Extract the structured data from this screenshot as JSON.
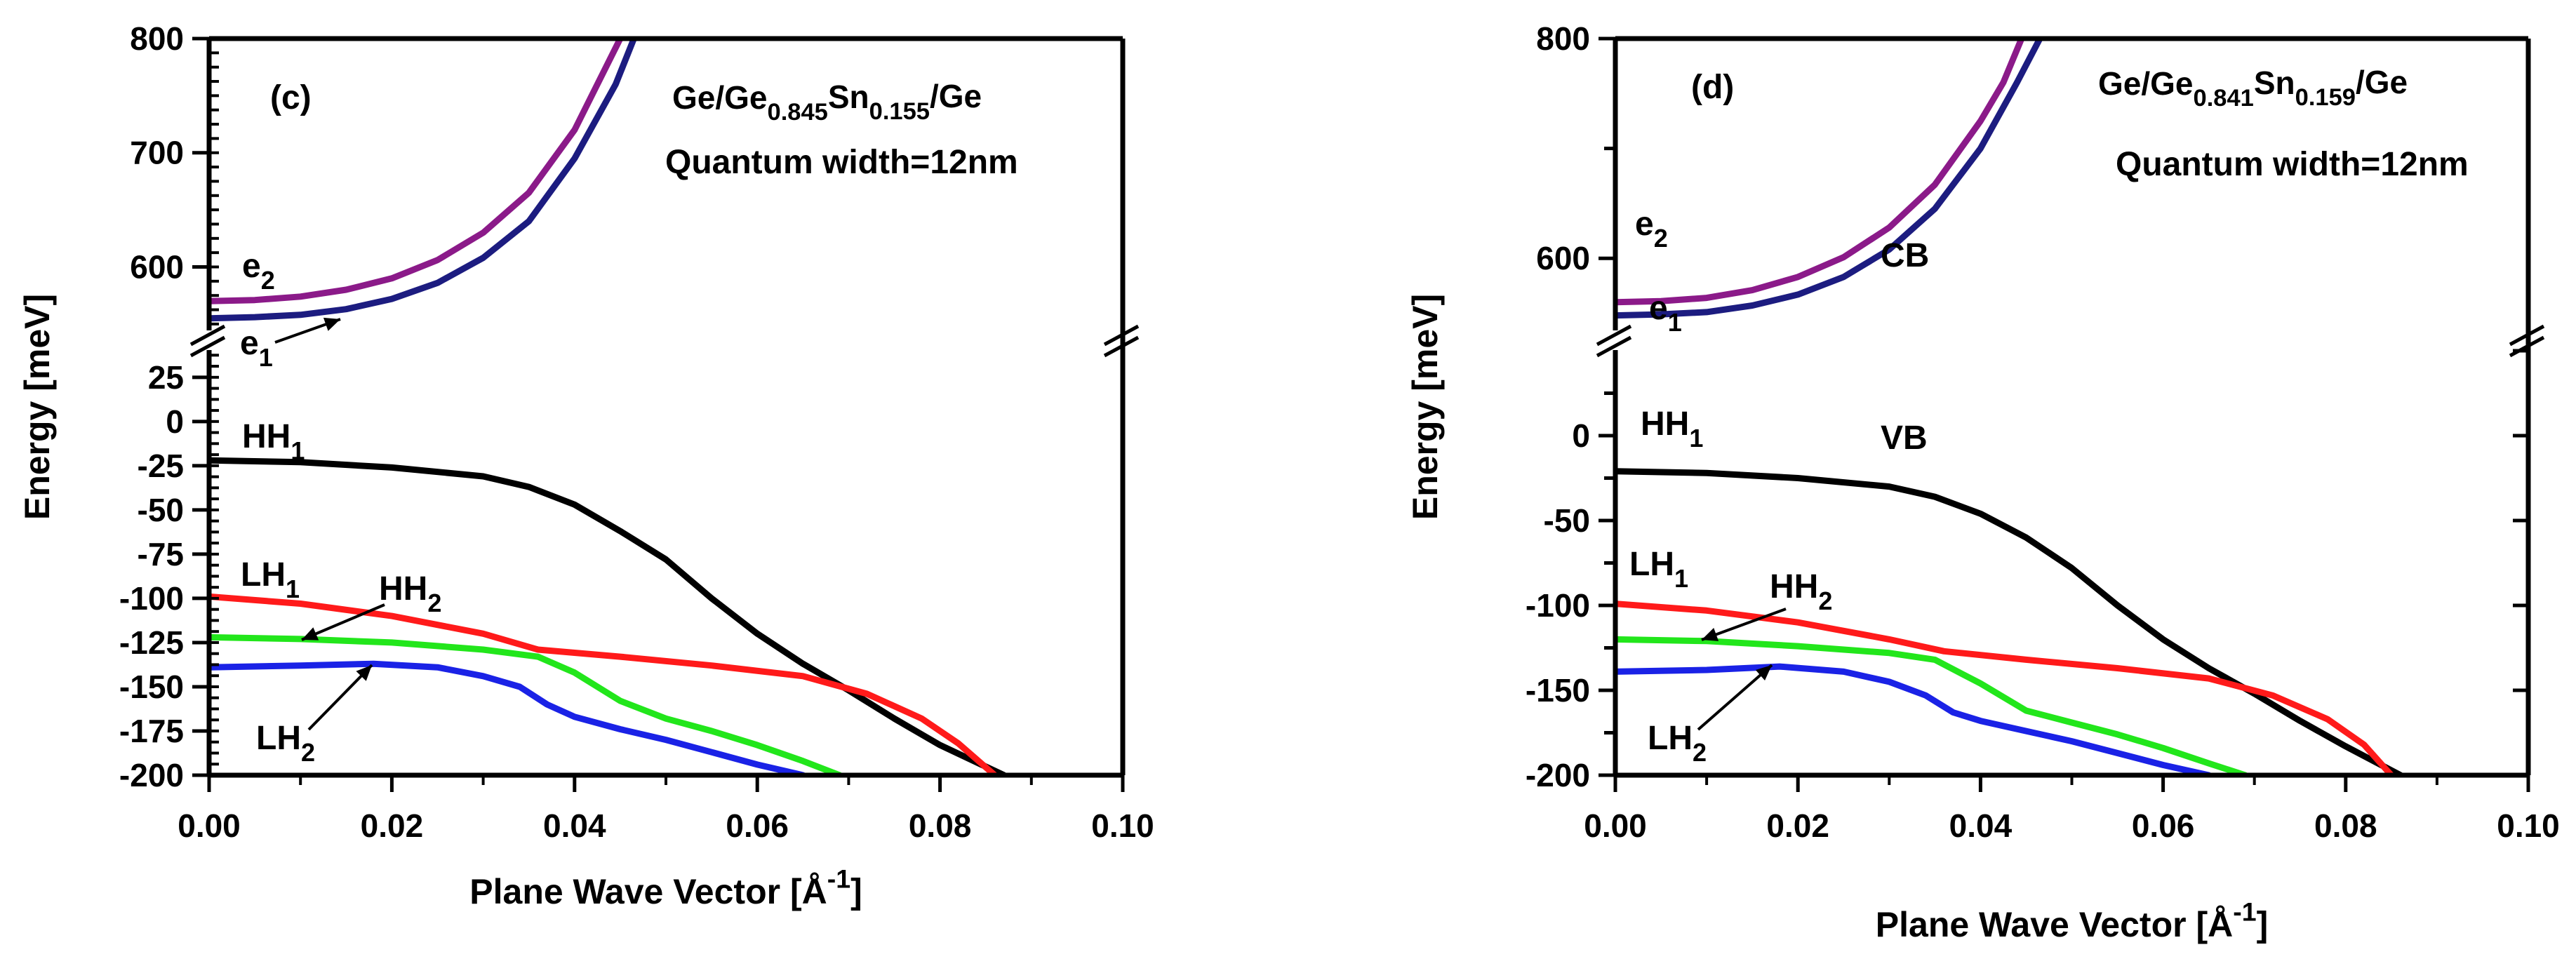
{
  "chart_data": [
    {
      "type": "line",
      "panel_label": "(c)",
      "structure": {
        "base": "Ge/Ge",
        "x": "0.845",
        "mid": "Sn",
        "y": "0.155",
        "tail": "/Ge"
      },
      "quantum_width": "Quantum width=12nm",
      "xlabel": {
        "main": "Plane Wave Vector [Å",
        "sup": "-1",
        "close": "]"
      },
      "ylabel": "Energy [meV]",
      "xlim": [
        0,
        0.1
      ],
      "x_ticks": [
        "0.00",
        "0.02",
        "0.04",
        "0.06",
        "0.08",
        "0.10"
      ],
      "upper": {
        "ylim": [
          545,
          800
        ],
        "ticks": [
          {
            "v": 600,
            "label": "600"
          },
          {
            "v": 700,
            "label": "700"
          },
          {
            "v": 800,
            "label": "800"
          }
        ]
      },
      "lower": {
        "ylim": [
          -200,
          40
        ],
        "ticks": [
          {
            "v": 25,
            "label": "25"
          },
          {
            "v": 0,
            "label": "0"
          },
          {
            "v": -25,
            "label": "-25"
          },
          {
            "v": -50,
            "label": "-50"
          },
          {
            "v": -75,
            "label": "-75"
          },
          {
            "v": -100,
            "label": "-100"
          },
          {
            "v": -125,
            "label": "-125"
          },
          {
            "v": -150,
            "label": "-150"
          },
          {
            "v": -175,
            "label": "-175"
          },
          {
            "v": -200,
            "label": "-200"
          }
        ]
      },
      "series": [
        {
          "name": "e2",
          "label": "e",
          "sub": "2",
          "color": "#8b1a89",
          "axis": "upper",
          "points": [
            [
              0,
              570
            ],
            [
              0.005,
              571
            ],
            [
              0.01,
              574
            ],
            [
              0.015,
              580
            ],
            [
              0.02,
              590
            ],
            [
              0.025,
              606
            ],
            [
              0.03,
              630
            ],
            [
              0.035,
              665
            ],
            [
              0.04,
              720
            ],
            [
              0.045,
              800
            ]
          ]
        },
        {
          "name": "e1",
          "label": "e",
          "sub": "1",
          "color": "#1c1c80",
          "axis": "upper",
          "points": [
            [
              0,
              555
            ],
            [
              0.005,
              556
            ],
            [
              0.01,
              558
            ],
            [
              0.015,
              563
            ],
            [
              0.02,
              572
            ],
            [
              0.025,
              586
            ],
            [
              0.03,
              608
            ],
            [
              0.035,
              640
            ],
            [
              0.04,
              695
            ],
            [
              0.0445,
              760
            ],
            [
              0.0465,
              800
            ]
          ]
        },
        {
          "name": "HH1",
          "label": "HH",
          "sub": "1",
          "color": "#000000",
          "axis": "lower",
          "points": [
            [
              0,
              -22
            ],
            [
              0.01,
              -23
            ],
            [
              0.02,
              -26
            ],
            [
              0.03,
              -31
            ],
            [
              0.035,
              -37
            ],
            [
              0.04,
              -47
            ],
            [
              0.045,
              -62
            ],
            [
              0.05,
              -78
            ],
            [
              0.055,
              -100
            ],
            [
              0.06,
              -120
            ],
            [
              0.065,
              -137
            ],
            [
              0.07,
              -152
            ],
            [
              0.075,
              -168
            ],
            [
              0.08,
              -183
            ],
            [
              0.087,
              -200
            ]
          ]
        },
        {
          "name": "LH1",
          "label": "LH",
          "sub": "1",
          "color": "#ff1a1a",
          "axis": "lower",
          "points": [
            [
              0,
              -99
            ],
            [
              0.01,
              -103
            ],
            [
              0.02,
              -110
            ],
            [
              0.03,
              -120
            ],
            [
              0.036,
              -129
            ],
            [
              0.045,
              -133
            ],
            [
              0.055,
              -138
            ],
            [
              0.065,
              -144
            ],
            [
              0.072,
              -154
            ],
            [
              0.078,
              -168
            ],
            [
              0.082,
              -182
            ],
            [
              0.086,
              -200
            ]
          ]
        },
        {
          "name": "HH2",
          "label": "HH",
          "sub": "2",
          "color": "#22e61b",
          "axis": "lower",
          "points": [
            [
              0,
              -122
            ],
            [
              0.01,
              -123
            ],
            [
              0.02,
              -125
            ],
            [
              0.03,
              -129
            ],
            [
              0.036,
              -133
            ],
            [
              0.04,
              -142
            ],
            [
              0.045,
              -158
            ],
            [
              0.05,
              -168
            ],
            [
              0.055,
              -175
            ],
            [
              0.06,
              -183
            ],
            [
              0.065,
              -192
            ],
            [
              0.069,
              -200
            ]
          ]
        },
        {
          "name": "LH2",
          "label": "LH",
          "sub": "2",
          "color": "#1a22e6",
          "axis": "lower",
          "points": [
            [
              0,
              -139
            ],
            [
              0.01,
              -138
            ],
            [
              0.018,
              -137
            ],
            [
              0.025,
              -139
            ],
            [
              0.03,
              -144
            ],
            [
              0.034,
              -150
            ],
            [
              0.037,
              -160
            ],
            [
              0.04,
              -167
            ],
            [
              0.045,
              -174
            ],
            [
              0.05,
              -180
            ],
            [
              0.055,
              -187
            ],
            [
              0.06,
              -194
            ],
            [
              0.065,
              -200
            ]
          ]
        }
      ],
      "annotations": {
        "e2": {
          "text": "e",
          "sub": "2"
        },
        "e1": {
          "text": "e",
          "sub": "1"
        },
        "HH1": {
          "text": "HH",
          "sub": "1"
        },
        "LH1": {
          "text": "LH",
          "sub": "1"
        },
        "HH2": {
          "text": "HH",
          "sub": "2"
        },
        "LH2": {
          "text": "LH",
          "sub": "2"
        }
      }
    },
    {
      "type": "line",
      "panel_label": "(d)",
      "structure": {
        "base": "Ge/Ge",
        "x": "0.841",
        "mid": "Sn",
        "y": "0.159",
        "tail": "/Ge"
      },
      "quantum_width": "Quantum width=12nm",
      "xlabel": {
        "main": "Plane Wave Vector [Å",
        "sup": "-1",
        "close": "]"
      },
      "ylabel": "Energy [meV]",
      "xlim": [
        0,
        0.1
      ],
      "x_ticks": [
        "0.00",
        "0.02",
        "0.04",
        "0.06",
        "0.08",
        "0.10"
      ],
      "upper": {
        "ylim": [
          535,
          800
        ],
        "ticks": [
          {
            "v": 600,
            "label": "600"
          },
          {
            "v": 800,
            "label": "800"
          }
        ]
      },
      "lower": {
        "ylim": [
          -200,
          50
        ],
        "ticks": [
          {
            "v": 0,
            "label": "0"
          },
          {
            "v": -50,
            "label": "-50"
          },
          {
            "v": -100,
            "label": "-100"
          },
          {
            "v": -150,
            "label": "-150"
          },
          {
            "v": -200,
            "label": "-200"
          }
        ]
      },
      "series": [
        {
          "name": "e2",
          "label": "e",
          "sub": "2",
          "color": "#8b1a89",
          "axis": "upper",
          "points": [
            [
              0,
              560
            ],
            [
              0.005,
              561
            ],
            [
              0.01,
              564
            ],
            [
              0.015,
              571
            ],
            [
              0.02,
              583
            ],
            [
              0.025,
              601
            ],
            [
              0.03,
              628
            ],
            [
              0.035,
              667
            ],
            [
              0.04,
              725
            ],
            [
              0.0425,
              760
            ],
            [
              0.0445,
              800
            ]
          ]
        },
        {
          "name": "e1",
          "label": "e",
          "sub": "1",
          "color": "#1c1c80",
          "axis": "upper",
          "points": [
            [
              0,
              548
            ],
            [
              0.005,
              549
            ],
            [
              0.01,
              551
            ],
            [
              0.015,
              557
            ],
            [
              0.02,
              567
            ],
            [
              0.025,
              583
            ],
            [
              0.03,
              608
            ],
            [
              0.035,
              645
            ],
            [
              0.04,
              700
            ],
            [
              0.044,
              760
            ],
            [
              0.0465,
              800
            ]
          ]
        },
        {
          "name": "HH1",
          "label": "HH",
          "sub": "1",
          "color": "#000000",
          "axis": "lower",
          "points": [
            [
              0,
              -21
            ],
            [
              0.01,
              -22
            ],
            [
              0.02,
              -25
            ],
            [
              0.03,
              -30
            ],
            [
              0.035,
              -36
            ],
            [
              0.04,
              -46
            ],
            [
              0.045,
              -60
            ],
            [
              0.05,
              -78
            ],
            [
              0.055,
              -100
            ],
            [
              0.06,
              -120
            ],
            [
              0.065,
              -137
            ],
            [
              0.07,
              -152
            ],
            [
              0.075,
              -168
            ],
            [
              0.08,
              -183
            ],
            [
              0.086,
              -200
            ]
          ]
        },
        {
          "name": "LH1",
          "label": "LH",
          "sub": "1",
          "color": "#ff1a1a",
          "axis": "lower",
          "points": [
            [
              0,
              -99
            ],
            [
              0.01,
              -103
            ],
            [
              0.02,
              -110
            ],
            [
              0.03,
              -120
            ],
            [
              0.036,
              -127
            ],
            [
              0.045,
              -132
            ],
            [
              0.055,
              -137
            ],
            [
              0.065,
              -143
            ],
            [
              0.072,
              -153
            ],
            [
              0.078,
              -167
            ],
            [
              0.082,
              -182
            ],
            [
              0.085,
              -200
            ]
          ]
        },
        {
          "name": "HH2",
          "label": "HH",
          "sub": "2",
          "color": "#22e61b",
          "axis": "lower",
          "points": [
            [
              0,
              -120
            ],
            [
              0.01,
              -121
            ],
            [
              0.02,
              -124
            ],
            [
              0.03,
              -128
            ],
            [
              0.035,
              -132
            ],
            [
              0.04,
              -146
            ],
            [
              0.045,
              -162
            ],
            [
              0.05,
              -169
            ],
            [
              0.055,
              -176
            ],
            [
              0.06,
              -184
            ],
            [
              0.065,
              -193
            ],
            [
              0.069,
              -200
            ]
          ]
        },
        {
          "name": "LH2",
          "label": "LH",
          "sub": "2",
          "color": "#1a22e6",
          "axis": "lower",
          "points": [
            [
              0,
              -139
            ],
            [
              0.01,
              -138
            ],
            [
              0.018,
              -136
            ],
            [
              0.025,
              -139
            ],
            [
              0.03,
              -145
            ],
            [
              0.034,
              -153
            ],
            [
              0.037,
              -163
            ],
            [
              0.04,
              -168
            ],
            [
              0.045,
              -174
            ],
            [
              0.05,
              -180
            ],
            [
              0.055,
              -187
            ],
            [
              0.06,
              -194
            ],
            [
              0.065,
              -200
            ]
          ]
        }
      ],
      "annotations": {
        "e2": {
          "text": "e",
          "sub": "2"
        },
        "e1": {
          "text": "e",
          "sub": "1"
        },
        "CB": {
          "text": "CB"
        },
        "VB": {
          "text": "VB"
        },
        "HH1": {
          "text": "HH",
          "sub": "1"
        },
        "LH1": {
          "text": "LH",
          "sub": "1"
        },
        "HH2": {
          "text": "HH",
          "sub": "2"
        },
        "LH2": {
          "text": "LH",
          "sub": "2"
        }
      }
    }
  ]
}
